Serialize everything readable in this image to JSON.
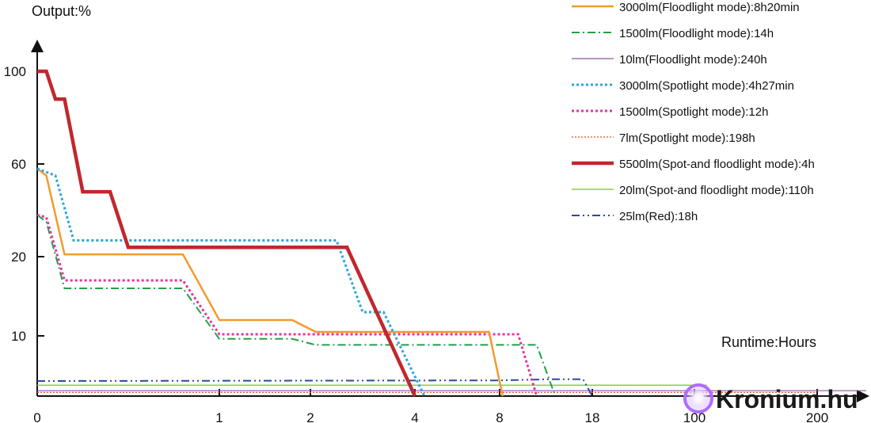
{
  "chart_data": {
    "type": "line",
    "ylabel": "Output:%",
    "xlabel": "Runtime:Hours",
    "x_ticks": [
      "0",
      "1",
      "2",
      "4",
      "8",
      "18",
      "100",
      "200"
    ],
    "y_ticks": [
      "10",
      "20",
      "60",
      "100"
    ],
    "x_scale": "nonlinear (tick positions not proportional)",
    "y_scale": "nonlinear (tick positions not proportional)",
    "grid": false,
    "legend_position": "top-right",
    "series": [
      {
        "name": "3000lm(Floodlight mode):8h20min",
        "color": "#f29a2e",
        "style": "solid",
        "points": [
          [
            0,
            58
          ],
          [
            0.05,
            55
          ],
          [
            0.15,
            21
          ],
          [
            0.8,
            21
          ],
          [
            1,
            12
          ],
          [
            1.8,
            12
          ],
          [
            2.1,
            10.5
          ],
          [
            4,
            10.5
          ],
          [
            7.5,
            10.5
          ],
          [
            8.333,
            0
          ]
        ]
      },
      {
        "name": "1500lm(Floodlight mode):14h",
        "color": "#22a045",
        "style": "dashdot",
        "points": [
          [
            0,
            38
          ],
          [
            0.05,
            35
          ],
          [
            0.15,
            16
          ],
          [
            0.8,
            16
          ],
          [
            1,
            9.5
          ],
          [
            1.8,
            9.5
          ],
          [
            2.1,
            8.5
          ],
          [
            4,
            8.5
          ],
          [
            8,
            8.5
          ],
          [
            12,
            8.5
          ],
          [
            14,
            0
          ]
        ]
      },
      {
        "name": "10lm(Floodlight mode):240h",
        "color": "#8c54a8",
        "style": "solid",
        "points": [
          [
            0,
            0.9
          ],
          [
            100,
            0.9
          ],
          [
            240,
            0.9
          ]
        ]
      },
      {
        "name": "3000lm(Spotlight mode):4h27min",
        "color": "#2aa6dc",
        "style": "dotted",
        "points": [
          [
            0,
            58
          ],
          [
            0.1,
            55
          ],
          [
            0.2,
            27
          ],
          [
            1,
            27
          ],
          [
            2,
            27
          ],
          [
            2.5,
            27
          ],
          [
            3,
            13
          ],
          [
            3.4,
            13
          ],
          [
            4.45,
            0
          ]
        ]
      },
      {
        "name": "1500lm(Spotlight mode):12h",
        "color": "#e3369f",
        "style": "dotted",
        "points": [
          [
            0,
            38
          ],
          [
            0.05,
            37
          ],
          [
            0.15,
            17
          ],
          [
            0.8,
            17
          ],
          [
            1,
            10.2
          ],
          [
            2,
            10.2
          ],
          [
            4,
            10.2
          ],
          [
            8,
            10.2
          ],
          [
            10,
            10.2
          ],
          [
            12,
            0
          ]
        ]
      },
      {
        "name": "7lm(Spotlight mode):198h",
        "color": "#e8541e",
        "style": "dotted",
        "points": [
          [
            0,
            0.6
          ],
          [
            100,
            0.6
          ],
          [
            198,
            0.6
          ]
        ]
      },
      {
        "name": "5500lm(Spot-and floodlight mode):4h",
        "color": "#c0282d",
        "style": "solid-thick",
        "points": [
          [
            0,
            100
          ],
          [
            0.05,
            100
          ],
          [
            0.1,
            88
          ],
          [
            0.15,
            88
          ],
          [
            0.25,
            48
          ],
          [
            0.4,
            48
          ],
          [
            0.5,
            24
          ],
          [
            1,
            24
          ],
          [
            2,
            24
          ],
          [
            2.7,
            24
          ],
          [
            4,
            0
          ]
        ]
      },
      {
        "name": "20lm(Spot-and floodlight mode):110h",
        "color": "#8ccf4a",
        "style": "solid",
        "points": [
          [
            0,
            1.8
          ],
          [
            18,
            1.8
          ],
          [
            110,
            1.8
          ]
        ]
      },
      {
        "name": "25lm(Red):18h",
        "color": "#2a4a9c",
        "style": "dashdotdot",
        "points": [
          [
            0,
            2.5
          ],
          [
            8,
            2.6
          ],
          [
            14,
            2.8
          ],
          [
            17,
            2.8
          ],
          [
            18,
            0
          ]
        ]
      }
    ]
  },
  "watermark": {
    "text": "Kronium.hu"
  }
}
